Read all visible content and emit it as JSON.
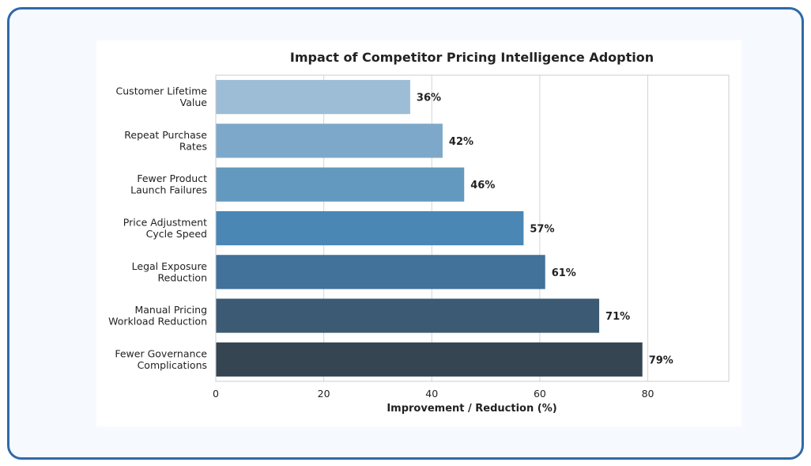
{
  "chart_data": {
    "type": "bar",
    "orientation": "horizontal",
    "title": "Impact of Competitor Pricing Intelligence Adoption",
    "xlabel": "Improvement / Reduction (%)",
    "ylabel": "",
    "xlim": [
      0,
      95
    ],
    "xticks": [
      "0",
      "20",
      "40",
      "60",
      "80"
    ],
    "grid": "vertical",
    "categories": [
      [
        "Customer Lifetime",
        "Value"
      ],
      [
        "Repeat Purchase",
        "Rates"
      ],
      [
        "Fewer Product",
        "Launch Failures"
      ],
      [
        "Price Adjustment",
        "Cycle Speed"
      ],
      [
        "Legal Exposure",
        "Reduction"
      ],
      [
        "Manual Pricing",
        "Workload Reduction"
      ],
      [
        "Fewer Governance",
        "Complications"
      ]
    ],
    "values": [
      36,
      42,
      46,
      57,
      61,
      71,
      79
    ],
    "data_labels": [
      "36%",
      "42%",
      "46%",
      "57%",
      "61%",
      "71%",
      "79%"
    ],
    "colors": [
      "#9dbdd6",
      "#7ea8c9",
      "#6399be",
      "#4a87b5",
      "#42719a",
      "#3c5a74",
      "#364552"
    ]
  }
}
